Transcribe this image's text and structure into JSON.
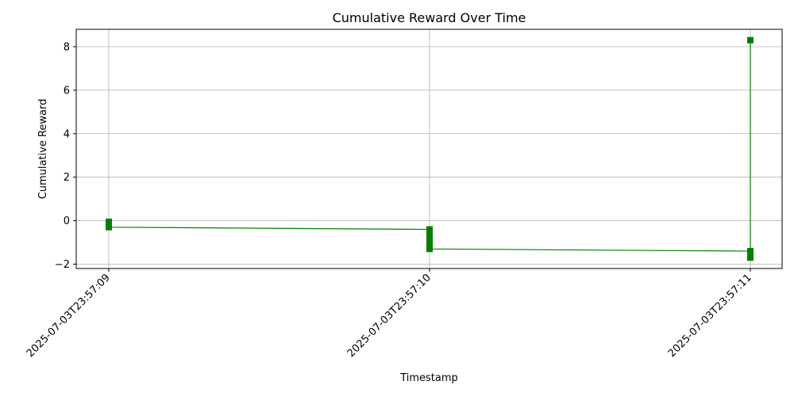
{
  "chart_data": {
    "type": "line",
    "title": "Cumulative Reward Over Time",
    "xlabel": "Timestamp",
    "ylabel": "Cumulative Reward",
    "x_ticks": [
      "2025-07-03T23:57:09",
      "2025-07-03T23:57:10",
      "2025-07-03T23:57:11"
    ],
    "y_ticks": [
      "−2",
      "0",
      "2",
      "4",
      "6",
      "8"
    ],
    "ylim": [
      -2.2,
      8.8
    ],
    "grid": true,
    "line_color": "#008000",
    "marker": "square",
    "series": [
      {
        "points": [
          {
            "x": "2025-07-03T23:57:09",
            "y": -0.05
          },
          {
            "x": "2025-07-03T23:57:09",
            "y": -0.15
          },
          {
            "x": "2025-07-03T23:57:09",
            "y": -0.25
          },
          {
            "x": "2025-07-03T23:57:09",
            "y": -0.3
          },
          {
            "x": "2025-07-03T23:57:10",
            "y": -0.4
          },
          {
            "x": "2025-07-03T23:57:10",
            "y": -0.5
          },
          {
            "x": "2025-07-03T23:57:10",
            "y": -0.6
          },
          {
            "x": "2025-07-03T23:57:10",
            "y": -0.7
          },
          {
            "x": "2025-07-03T23:57:10",
            "y": -0.8
          },
          {
            "x": "2025-07-03T23:57:10",
            "y": -0.9
          },
          {
            "x": "2025-07-03T23:57:10",
            "y": -1.0
          },
          {
            "x": "2025-07-03T23:57:10",
            "y": -1.1
          },
          {
            "x": "2025-07-03T23:57:10",
            "y": -1.2
          },
          {
            "x": "2025-07-03T23:57:10",
            "y": -1.3
          },
          {
            "x": "2025-07-03T23:57:11",
            "y": -1.4
          },
          {
            "x": "2025-07-03T23:57:11",
            "y": -1.6
          },
          {
            "x": "2025-07-03T23:57:11",
            "y": -1.7
          },
          {
            "x": "2025-07-03T23:57:11",
            "y": 8.3
          }
        ]
      }
    ]
  }
}
